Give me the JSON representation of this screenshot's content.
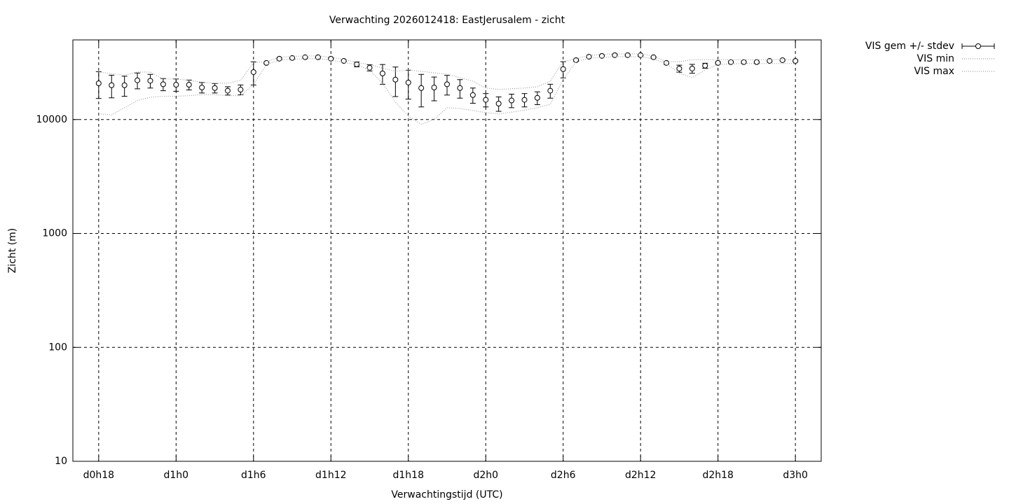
{
  "chart_data": {
    "type": "line",
    "title": "Verwachting 2026012418: EastJerusalem - zicht",
    "x_label": "Verwachtingstijd (UTC)",
    "y_label": "Zicht (m)",
    "x": [
      18,
      19,
      20,
      21,
      22,
      23,
      24,
      25,
      26,
      27,
      28,
      29,
      30,
      31,
      32,
      33,
      34,
      35,
      36,
      37,
      38,
      39,
      40,
      41,
      42,
      43,
      44,
      45,
      46,
      47,
      48,
      49,
      50,
      51,
      52,
      53,
      54,
      55,
      56,
      57,
      58,
      59,
      60,
      61,
      62,
      63,
      64,
      65,
      66,
      67,
      68,
      69,
      70,
      71,
      72
    ],
    "series": [
      {
        "name": "VIS gem +/- stdev",
        "color": "#000000",
        "values": [
          20800,
          20000,
          20000,
          22100,
          21900,
          20400,
          20200,
          20200,
          19100,
          18900,
          17900,
          18300,
          26100,
          31400,
          34200,
          34700,
          35200,
          35200,
          34200,
          32700,
          30500,
          28500,
          25400,
          22400,
          21100,
          18900,
          19100,
          20400,
          18900,
          16400,
          14900,
          13800,
          14700,
          14900,
          15500,
          17900,
          27700,
          33200,
          35600,
          36200,
          36700,
          36700,
          36700,
          35200,
          31400,
          28000,
          28000,
          29700,
          31400,
          31900,
          31900,
          31900,
          32700,
          33200,
          32700
        ],
        "error": [
          5500,
          4500,
          4000,
          3500,
          3000,
          2500,
          2500,
          2000,
          2000,
          1800,
          1500,
          1800,
          6000,
          500,
          500,
          400,
          400,
          400,
          400,
          500,
          1500,
          1800,
          5000,
          6500,
          6000,
          6000,
          4500,
          4000,
          3500,
          2500,
          2000,
          2000,
          2000,
          2000,
          2000,
          2500,
          4500,
          800,
          500,
          400,
          400,
          400,
          400,
          500,
          800,
          2000,
          2500,
          1500,
          700,
          500,
          500,
          500,
          500,
          500,
          500
        ]
      },
      {
        "name": "VIS min",
        "color": "#a0a0a0",
        "values": [
          11200,
          11000,
          12700,
          14700,
          15700,
          16000,
          16000,
          16200,
          16500,
          16500,
          16200,
          16200,
          20200,
          30400,
          33200,
          33700,
          34200,
          34200,
          33200,
          31700,
          30400,
          27100,
          20800,
          14200,
          10700,
          9100,
          10000,
          12700,
          12500,
          12000,
          11500,
          11200,
          11600,
          12100,
          12700,
          13600,
          22400,
          32300,
          34500,
          35100,
          35600,
          35600,
          35600,
          34100,
          30800,
          25600,
          23300,
          27200,
          30400,
          30800,
          31000,
          31000,
          31000,
          31000,
          31000
        ]
      },
      {
        "name": "VIS max",
        "color": "#a0a0a0",
        "values": [
          26100,
          25300,
          24500,
          26100,
          26100,
          22700,
          22700,
          22100,
          21300,
          20800,
          20800,
          22100,
          31600,
          32200,
          35200,
          35700,
          36200,
          36200,
          35200,
          33700,
          31600,
          30400,
          28300,
          26500,
          27200,
          26500,
          25700,
          25000,
          23300,
          21700,
          18900,
          18400,
          18600,
          18900,
          19400,
          21700,
          32200,
          34200,
          36600,
          37200,
          37700,
          37700,
          37700,
          36200,
          32200,
          32200,
          33500,
          33500,
          33500,
          33500,
          33500,
          33500,
          33500,
          33500,
          33500
        ]
      }
    ],
    "xlim": [
      16,
      74
    ],
    "xticks": [
      {
        "value": 18,
        "label": "d0h18"
      },
      {
        "value": 24,
        "label": "d1h0"
      },
      {
        "value": 30,
        "label": "d1h6"
      },
      {
        "value": 36,
        "label": "d1h12"
      },
      {
        "value": 42,
        "label": "d1h18"
      },
      {
        "value": 48,
        "label": "d2h0"
      },
      {
        "value": 54,
        "label": "d2h6"
      },
      {
        "value": 60,
        "label": "d2h12"
      },
      {
        "value": 66,
        "label": "d2h18"
      },
      {
        "value": 72,
        "label": "d3h0"
      }
    ],
    "ylim": [
      10,
      50000
    ],
    "yticks": [
      10,
      100,
      1000,
      10000
    ],
    "y_scale": "log",
    "grid": true,
    "legend": "outside-top-right"
  }
}
